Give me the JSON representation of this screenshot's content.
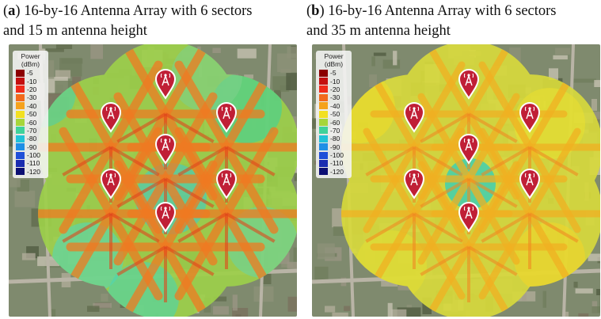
{
  "panels": [
    {
      "id": "a",
      "caption_letter": "a",
      "caption_line1": "16-by-16 Antenna Array with 6 sectors",
      "caption_line2": "and 15 m antenna height",
      "antenna_height_m": 15,
      "coverage_style": "streaked"
    },
    {
      "id": "b",
      "caption_letter": "b",
      "caption_line1": "16-by-16 Antenna Array with 6 sectors",
      "caption_line2": "and 35 m antenna height",
      "antenna_height_m": 35,
      "coverage_style": "uniform"
    }
  ],
  "legend": {
    "title": "Power",
    "unit": "(dBm)",
    "entries": [
      {
        "label": "-5",
        "color": "#8b0000"
      },
      {
        "label": "-10",
        "color": "#c40f0f"
      },
      {
        "label": "-20",
        "color": "#f02a1a"
      },
      {
        "label": "-30",
        "color": "#f26a1c"
      },
      {
        "label": "-40",
        "color": "#f5a21c"
      },
      {
        "label": "-50",
        "color": "#f2e020"
      },
      {
        "label": "-60",
        "color": "#a6d63a"
      },
      {
        "label": "-70",
        "color": "#3fd29a"
      },
      {
        "label": "-80",
        "color": "#20c2d8"
      },
      {
        "label": "-90",
        "color": "#1e8fe6"
      },
      {
        "label": "-100",
        "color": "#1f4fd8"
      },
      {
        "label": "-110",
        "color": "#1a2cb0"
      },
      {
        "label": "-120",
        "color": "#0c0f73"
      }
    ]
  },
  "base_station_icon": "cell-tower-pin-icon",
  "base_station_count_per_panel": 7,
  "colors": {
    "pin_fill": "#c01f36",
    "pin_border": "#ffffff"
  }
}
